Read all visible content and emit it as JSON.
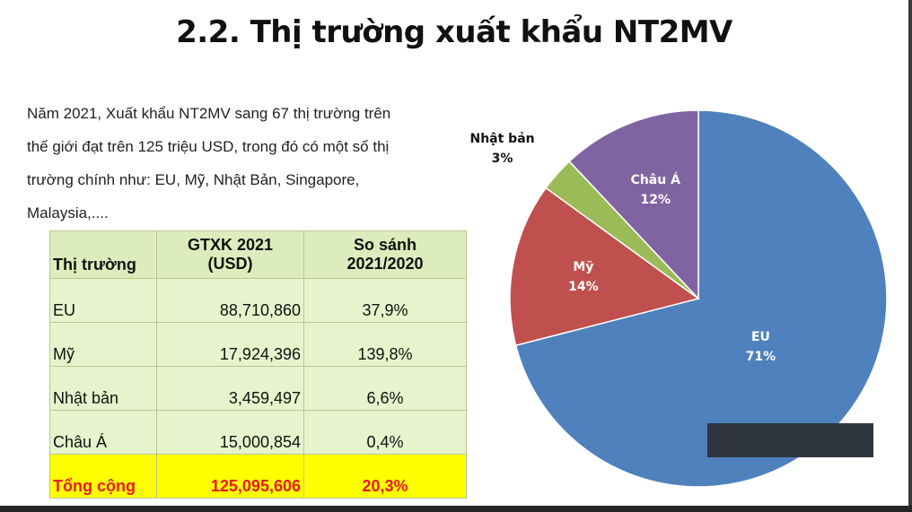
{
  "slide": {
    "title": "2.2. Thị trường xuất khẩu NT2MV",
    "intro_lines": [
      "Năm 2021, Xuất khẩu NT2MV sang 67 thị trường trên",
      "thế giới đạt trên 125 triệu USD, trong đó có một số thị",
      "trường chính như: EU, Mỹ, Nhật Bản, Singapore,",
      "Malaysia,...."
    ]
  },
  "table": {
    "headers": [
      "Thị trường",
      "GTXK 2021 (USD)",
      "So sánh 2021/2020"
    ],
    "rows": [
      {
        "market": "EU",
        "value": "88,710,860",
        "compare": "37,9%"
      },
      {
        "market": "Mỹ",
        "value": "17,924,396",
        "compare": "139,8%"
      },
      {
        "market": "Nhật bản",
        "value": "3,459,497",
        "compare": "6,6%"
      },
      {
        "market": "Châu Á",
        "value": "15,000,854",
        "compare": "0,4%"
      }
    ],
    "total": {
      "market": "Tổng cộng",
      "value": "125,095,606",
      "compare": "20,3%"
    }
  },
  "chart_data": {
    "type": "pie",
    "title": "",
    "slices": [
      {
        "label": "EU",
        "value": 71,
        "display": "71%",
        "color": "#4f81bd"
      },
      {
        "label": "Mỹ",
        "value": 14,
        "display": "14%",
        "color": "#c0504d"
      },
      {
        "label": "Nhật bản",
        "value": 3,
        "display": "3%",
        "color": "#9bbb59"
      },
      {
        "label": "Châu Á",
        "value": 12,
        "display": "12%",
        "color": "#8064a2"
      }
    ],
    "start": "top, clockwise",
    "labels_position": "inside, except Nhật bản outside"
  }
}
